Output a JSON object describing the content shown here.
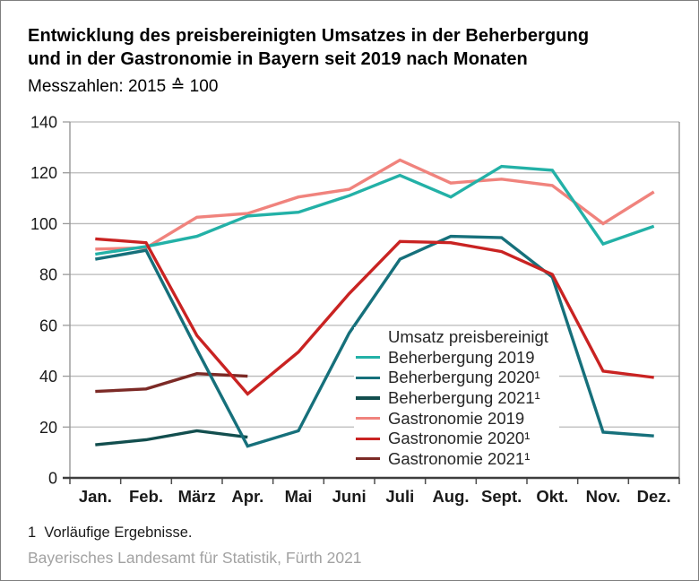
{
  "header": {
    "title_line1": "Entwicklung des preisbereinigten Umsatzes in der Beherbergung",
    "title_line2": "und in der Gastronomie in Bayern seit 2019 nach Monaten",
    "subtitle": "Messzahlen: 2015 ≙ 100"
  },
  "chart_data": {
    "type": "line",
    "title": "Entwicklung des preisbereinigten Umsatzes in der Beherbergung und in der Gastronomie in Bayern seit 2019 nach Monaten",
    "subtitle": "Messzahlen: 2015 ≙ 100",
    "categories": [
      "Jan.",
      "Feb.",
      "März",
      "Apr.",
      "Mai",
      "Juni",
      "Juli",
      "Aug.",
      "Sept.",
      "Okt.",
      "Nov.",
      "Dez."
    ],
    "ylim": [
      0,
      140
    ],
    "ytick_step": 20,
    "grid": true,
    "legend_title": "Umsatz preisbereinigt",
    "legend_position": "inside-center-right",
    "series": [
      {
        "name": "Beherbergung 2019",
        "color": "#23b1a7",
        "values": [
          88,
          91,
          95,
          103,
          104.5,
          111,
          119,
          110.5,
          122.5,
          121,
          92,
          99
        ]
      },
      {
        "name": "Beherbergung 2020¹",
        "color": "#16707b",
        "values": [
          86,
          89.5,
          50.5,
          12.5,
          18.5,
          57,
          86,
          95,
          94.5,
          79,
          18,
          16.5
        ]
      },
      {
        "name": "Beherbergung 2021¹",
        "color": "#124e4e",
        "values": [
          13,
          15,
          18.5,
          16,
          null,
          null,
          null,
          null,
          null,
          null,
          null,
          null
        ]
      },
      {
        "name": "Gastronomie 2019",
        "color": "#f0837d",
        "values": [
          90,
          90.5,
          102.5,
          104,
          110.5,
          113.5,
          125,
          116,
          117.5,
          115,
          100,
          112.5
        ]
      },
      {
        "name": "Gastronomie 2020¹",
        "color": "#c92322",
        "values": [
          94,
          92.5,
          56,
          33,
          49.5,
          72.5,
          93,
          92.5,
          89,
          80,
          42,
          39.5
        ]
      },
      {
        "name": "Gastronomie 2021¹",
        "color": "#7c2a26",
        "values": [
          34,
          35,
          41,
          40,
          null,
          null,
          null,
          null,
          null,
          null,
          null,
          null
        ]
      }
    ]
  },
  "footnote": "1  Vorläufige Ergebnisse.",
  "source": "Bayerisches Landesamt für Statistik, Fürth 2021"
}
